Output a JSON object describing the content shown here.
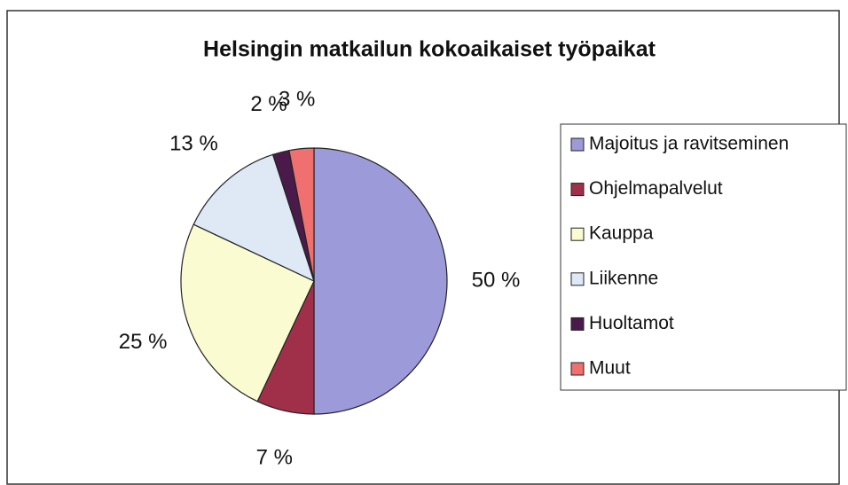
{
  "chart_data": {
    "type": "pie",
    "title": "Helsingin matkailun kokoaikaiset työpaikat",
    "categories": [
      "Majoitus ja ravitseminen",
      "Ohjelmapalvelut",
      "Kauppa",
      "Liikenne",
      "Huoltamot",
      "Muut"
    ],
    "values": [
      50,
      7,
      25,
      13,
      2,
      3
    ],
    "value_labels": [
      "50 %",
      "7 %",
      "25 %",
      "13 %",
      "2 %",
      "3 %"
    ],
    "colors": [
      "#9c9ad8",
      "#a0304a",
      "#fbfbd2",
      "#dfe9f5",
      "#4a1a4a",
      "#f07070"
    ],
    "legend": "right"
  }
}
